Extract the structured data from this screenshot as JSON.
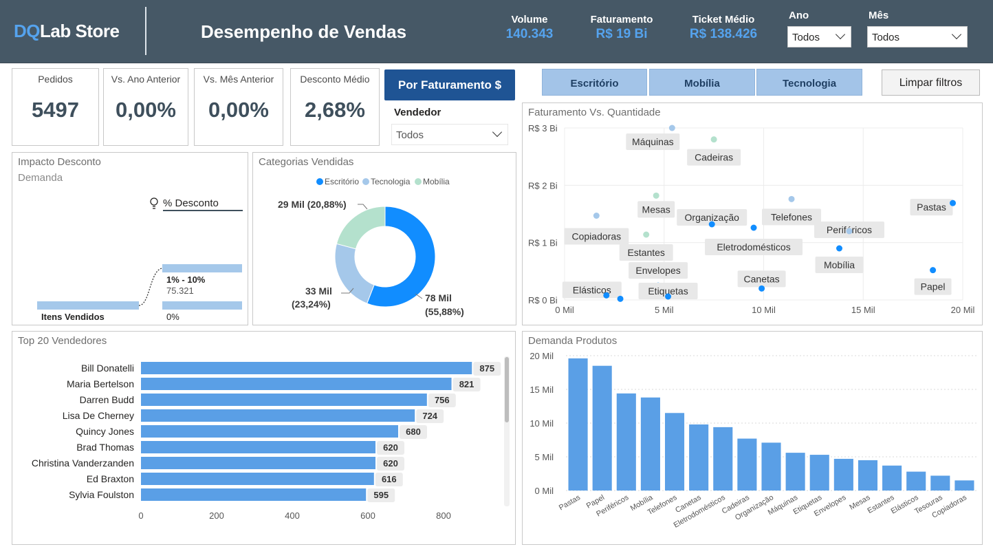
{
  "header": {
    "logo_accent": "DQ",
    "logo_rest": "Lab Store",
    "title": "Desempenho de Vendas",
    "kpis": [
      {
        "label": "Volume",
        "value": "140.343"
      },
      {
        "label": "Faturamento",
        "value": "R$ 19 Bi"
      },
      {
        "label": "Ticket Médio",
        "value": "R$ 138.426"
      }
    ],
    "filters": [
      {
        "label": "Ano",
        "value": "Todos"
      },
      {
        "label": "Mês",
        "value": "Todos"
      }
    ]
  },
  "kpi_cards": [
    {
      "label": "Pedidos",
      "value": "5497"
    },
    {
      "label": "Vs. Ano Anterior",
      "value": "0,00%"
    },
    {
      "label": "Vs. Mês Anterior",
      "value": "0,00%"
    },
    {
      "label": "Desconto Médio",
      "value": "2,68%"
    }
  ],
  "toggle_button": "Por Faturamento $",
  "seller_filter": {
    "label": "Vendedor",
    "value": "Todos"
  },
  "category_buttons": [
    "Escritório",
    "Mobília",
    "Tecnologia"
  ],
  "clear_filters": "Limpar filtros",
  "impact": {
    "title": "Impacto Desconto",
    "subtitle": "Demanda",
    "root_label": "Itens Vendidos",
    "field_label": "% Desconto",
    "branches": [
      {
        "label": "1% - 10%",
        "value": "75.321"
      },
      {
        "label": "0%"
      }
    ]
  },
  "colors": {
    "header_bg": "#465866",
    "accent_blue": "#55a3ee",
    "escritorio": "#118dff",
    "tecnologia": "#a5c8ea",
    "mobilia": "#b4e1cd",
    "bar_blue": "#5a9fe6",
    "button_dark": "#1f5494",
    "button_light": "#a3c4e8"
  },
  "category_chart": {
    "title": "Categorias Vendidas",
    "legend": [
      "Escritório",
      "Tecnologia",
      "Mobília"
    ],
    "chart_data": {
      "type": "pie",
      "slices": [
        {
          "name": "Escritório",
          "percent": 55.88,
          "label": "78 Mil",
          "label_pct": "(55,88%)"
        },
        {
          "name": "Tecnologia",
          "percent": 23.24,
          "label": "33 Mil",
          "label_pct": "(23,24%)"
        },
        {
          "name": "Mobília",
          "percent": 20.88,
          "label": "29 Mil (20,88%)",
          "label_pct": ""
        }
      ]
    }
  },
  "scatter_chart": {
    "title": "Faturamento Vs. Quantidade",
    "chart_data": {
      "type": "scatter",
      "xlim": [
        0,
        20000
      ],
      "ylim": [
        0,
        3
      ],
      "x_ticks": [
        "0 Mil",
        "5 Mil",
        "10 Mil",
        "15 Mil",
        "20 Mil"
      ],
      "x_tick_values": [
        0,
        5000,
        10000,
        15000,
        20000
      ],
      "y_ticks": [
        "R$ 0 Bi",
        "R$ 1 Bi",
        "R$ 2 Bi",
        "R$ 3 Bi"
      ],
      "y_tick_values": [
        0,
        1,
        2,
        3
      ],
      "points": [
        {
          "label": "Máquinas",
          "x": 5400,
          "y": 3.0,
          "cat": "tecnologia"
        },
        {
          "label": "Cadeiras",
          "x": 7500,
          "y": 2.8,
          "cat": "mobilia"
        },
        {
          "label": "Mesas",
          "x": 4600,
          "y": 1.82,
          "cat": "mobilia"
        },
        {
          "label": "Organização",
          "x": 7400,
          "y": 1.32,
          "cat": "escritorio"
        },
        {
          "label": "Telefones",
          "x": 11400,
          "y": 1.76,
          "cat": "tecnologia"
        },
        {
          "label": "Pastas",
          "x": 19500,
          "y": 1.69,
          "cat": "escritorio"
        },
        {
          "label": "Copiadoras",
          "x": 1600,
          "y": 1.47,
          "cat": "tecnologia"
        },
        {
          "label": "Estantes",
          "x": 4100,
          "y": 1.14,
          "cat": "mobilia"
        },
        {
          "label": "Eletrodomésticos",
          "x": 9500,
          "y": 1.26,
          "cat": "escritorio"
        },
        {
          "label": "Periféricos",
          "x": 14300,
          "y": 1.2,
          "cat": "tecnologia"
        },
        {
          "label": "Mobília",
          "x": 13800,
          "y": 0.9,
          "cat": "escritorio"
        },
        {
          "label": "Envelopes",
          "x": 4700,
          "y": 0.25,
          "cat": "escritorio"
        },
        {
          "label": "Canetas",
          "x": 9900,
          "y": 0.2,
          "cat": "escritorio"
        },
        {
          "label": "Papel",
          "x": 18500,
          "y": 0.52,
          "cat": "escritorio"
        },
        {
          "label": "Elásticos",
          "x": 2100,
          "y": 0.08,
          "cat": "escritorio"
        },
        {
          "label": "Etiquetas",
          "x": 5200,
          "y": 0.06,
          "cat": "escritorio"
        },
        {
          "label": "",
          "x": 2800,
          "y": 0.02,
          "cat": "escritorio"
        }
      ]
    }
  },
  "sellers_chart": {
    "title": "Top 20 Vendedores",
    "chart_data": {
      "type": "bar",
      "orientation": "horizontal",
      "xlim": [
        0,
        1000
      ],
      "x_ticks": [
        0,
        200,
        400,
        600,
        800
      ],
      "categories": [
        "Bill Donatelli",
        "Maria Bertelson",
        "Darren Budd",
        "Lisa De Cherney",
        "Quincy Jones",
        "Brad Thomas",
        "Christina Vanderzanden",
        "Ed Braxton",
        "Sylvia Foulston"
      ],
      "values": [
        875,
        821,
        756,
        724,
        680,
        620,
        620,
        616,
        595
      ]
    }
  },
  "demand_chart": {
    "title": "Demanda Produtos",
    "chart_data": {
      "type": "bar",
      "ylim": [
        0,
        20000
      ],
      "y_ticks": [
        "0 Mil",
        "5 Mil",
        "10 Mil",
        "15 Mil",
        "20 Mil"
      ],
      "y_tick_values": [
        0,
        5000,
        10000,
        15000,
        20000
      ],
      "categories": [
        "Pastas",
        "Papel",
        "Periféricos",
        "Mobília",
        "Telefones",
        "Canetas",
        "Eletrodomésticos",
        "Cadeiras",
        "Organização",
        "Máquinas",
        "Etiquetas",
        "Envelopes",
        "Mesas",
        "Estantes",
        "Elásticos",
        "Tesouras",
        "Copiadoras"
      ],
      "values": [
        19600,
        18500,
        14400,
        13800,
        11500,
        9800,
        9400,
        7700,
        7100,
        5600,
        5300,
        4700,
        4500,
        3700,
        2800,
        2200,
        1500
      ]
    }
  }
}
